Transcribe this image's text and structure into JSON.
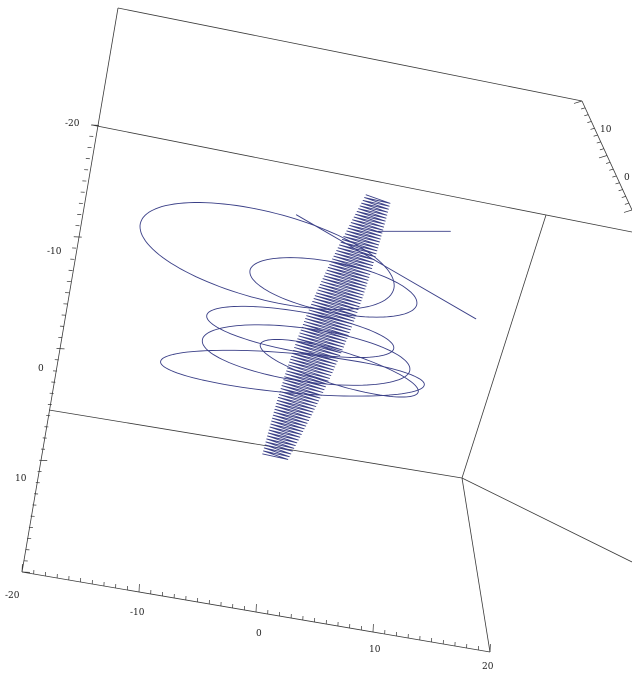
{
  "chart_data": {
    "type": "line",
    "title": "",
    "xlabel": "",
    "ylabel": "",
    "zlabel": "",
    "grid": false,
    "legend": false,
    "colors": {
      "curve": "#3a3f87",
      "box": "#3a3a3a",
      "ticks": "#333333"
    },
    "axes": {
      "vertical_left": {
        "range": [
          -20,
          20
        ],
        "major_ticks": [
          -20,
          -10,
          0,
          10
        ],
        "tick_labels": [
          "-20",
          "-10",
          "0",
          "10"
        ]
      },
      "bottom_front": {
        "range": [
          -20,
          20
        ],
        "major_ticks": [
          -20,
          -10,
          0,
          10,
          20
        ],
        "tick_labels": [
          "-20",
          "-10",
          "0",
          "10",
          "20"
        ]
      },
      "right_depth": {
        "major_ticks": [
          10,
          0
        ],
        "tick_labels": [
          "10",
          "0"
        ]
      }
    },
    "series": [
      {
        "description_kind": "3d-space-curve",
        "loops": [
          {
            "center": [
              -2.2,
              -6.3,
              0
            ],
            "rx": 6.8,
            "ry": 2.6,
            "tilt": 18
          },
          {
            "center": [
              1.2,
              -4.4,
              0
            ],
            "rx": 4.4,
            "ry": 1.5,
            "tilt": 14
          },
          {
            "center": [
              -0.5,
              -1.7,
              0
            ],
            "rx": 4.9,
            "ry": 1.2,
            "tilt": 12
          },
          {
            "center": [
              -0.2,
              -0.3,
              0
            ],
            "rx": 5.4,
            "ry": 1.6,
            "tilt": 10
          },
          {
            "center": [
              -0.9,
              0.8,
              0
            ],
            "rx": 6.8,
            "ry": 1.2,
            "tilt": 6
          },
          {
            "center": [
              1.5,
              0.5,
              0
            ],
            "rx": 4.3,
            "ry": 1.0,
            "tilt": 20
          }
        ],
        "spine": {
          "start": [
            -1.8,
            5.9
          ],
          "end": [
            3.5,
            -9.8
          ],
          "zigzag_count": 180,
          "zigzag_amplitude": 1.2
        },
        "diagonal_segment": {
          "start": [
            -0.7,
            -8.8
          ],
          "end": [
            8.5,
            -2.5
          ]
        },
        "short_segment": {
          "start": [
            3.5,
            -7.8
          ],
          "end": [
            7.2,
            -7.8
          ]
        }
      }
    ]
  }
}
